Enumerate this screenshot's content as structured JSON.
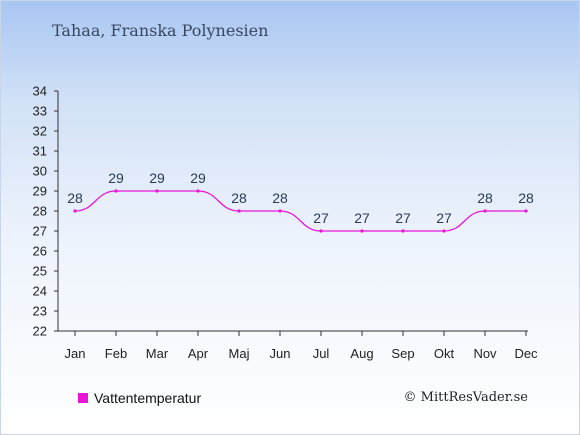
{
  "title": "Tahaa, Franska Polynesien",
  "credit": "© MittResVader.se",
  "colors": {
    "series": "#e815d6",
    "axis": "#333333"
  },
  "chart_data": {
    "type": "line",
    "categories": [
      "Jan",
      "Feb",
      "Mar",
      "Apr",
      "Maj",
      "Jun",
      "Jul",
      "Aug",
      "Sep",
      "Okt",
      "Nov",
      "Dec"
    ],
    "series": [
      {
        "name": "Vattentemperatur",
        "values": [
          28,
          29,
          29,
          29,
          28,
          28,
          27,
          27,
          27,
          27,
          28,
          28
        ]
      }
    ],
    "ylim": [
      22,
      34
    ],
    "yticks": [
      22,
      23,
      24,
      25,
      26,
      27,
      28,
      29,
      30,
      31,
      32,
      33,
      34
    ],
    "legend_position": "bottom-left",
    "grid": false
  }
}
